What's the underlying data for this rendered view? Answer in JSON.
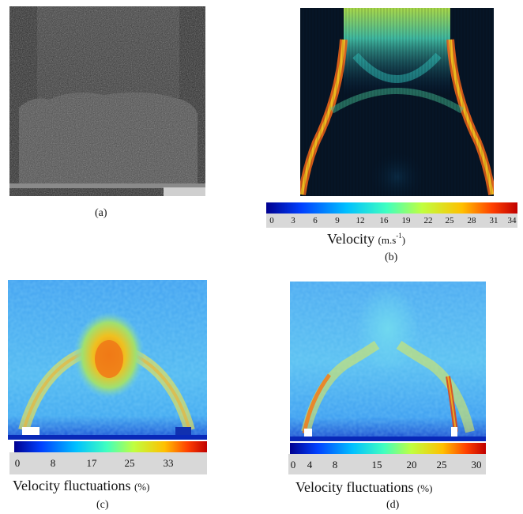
{
  "figure": {
    "panels": [
      {
        "id": "a",
        "label": "(a)"
      },
      {
        "id": "b",
        "label": "(b)"
      },
      {
        "id": "c",
        "label": "(c)"
      },
      {
        "id": "d",
        "label": "(d)"
      }
    ],
    "colorbar_b": {
      "ticks": [
        "0",
        "3",
        "6",
        "9",
        "12",
        "16",
        "19",
        "22",
        "25",
        "28",
        "31",
        "34"
      ],
      "caption": "Velocity",
      "unit": "(m.s",
      "unit_exp": "-1",
      "unit_close": ")"
    },
    "colorbar_c": {
      "ticks": [
        "0",
        "8",
        "17",
        "25",
        "33"
      ],
      "caption": "Velocity fluctuations",
      "unit": "(%)"
    },
    "colorbar_d": {
      "ticks": [
        "0",
        "4",
        "8",
        "15",
        "20",
        "25",
        "30"
      ],
      "caption": "Velocity fluctuations",
      "unit": "(%)"
    },
    "colormap": [
      "#00008f",
      "#0040ff",
      "#00c0ff",
      "#40ffc0",
      "#c0ff40",
      "#ffc000",
      "#ff4000",
      "#c00000"
    ]
  }
}
